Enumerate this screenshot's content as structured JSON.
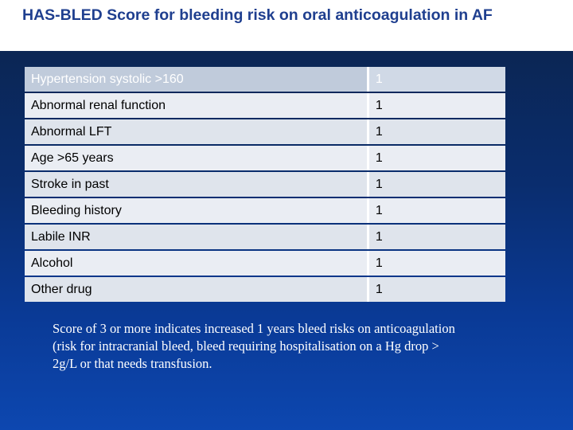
{
  "slide": {
    "title": "HAS-BLED Score for bleeding risk on oral anticoagulation in AF",
    "rows": [
      {
        "factor": "Hypertension systolic >160",
        "points": "1"
      },
      {
        "factor": "Abnormal renal function",
        "points": "1"
      },
      {
        "factor": "Abnormal LFT",
        "points": "1"
      },
      {
        "factor": "Age >65 years",
        "points": "1"
      },
      {
        "factor": "Stroke in past",
        "points": "1"
      },
      {
        "factor": "Bleeding history",
        "points": "1"
      },
      {
        "factor": "Labile INR",
        "points": "1"
      },
      {
        "factor": "Alcohol",
        "points": "1"
      },
      {
        "factor": "Other drug",
        "points": "1"
      }
    ],
    "note": "Score of 3 or more indicates increased 1 years bleed risks on anticoagulation (risk for intracranial bleed, bleed requiring hospitalisation on a Hg drop > 2g/L or that needs transfusion."
  },
  "colors": {
    "title": "#1f3f8f",
    "background_top": "#0b2654",
    "background_bottom": "#0d47b0",
    "row_fill": "#eaedf3",
    "header_fill": "#c0cbdb"
  }
}
